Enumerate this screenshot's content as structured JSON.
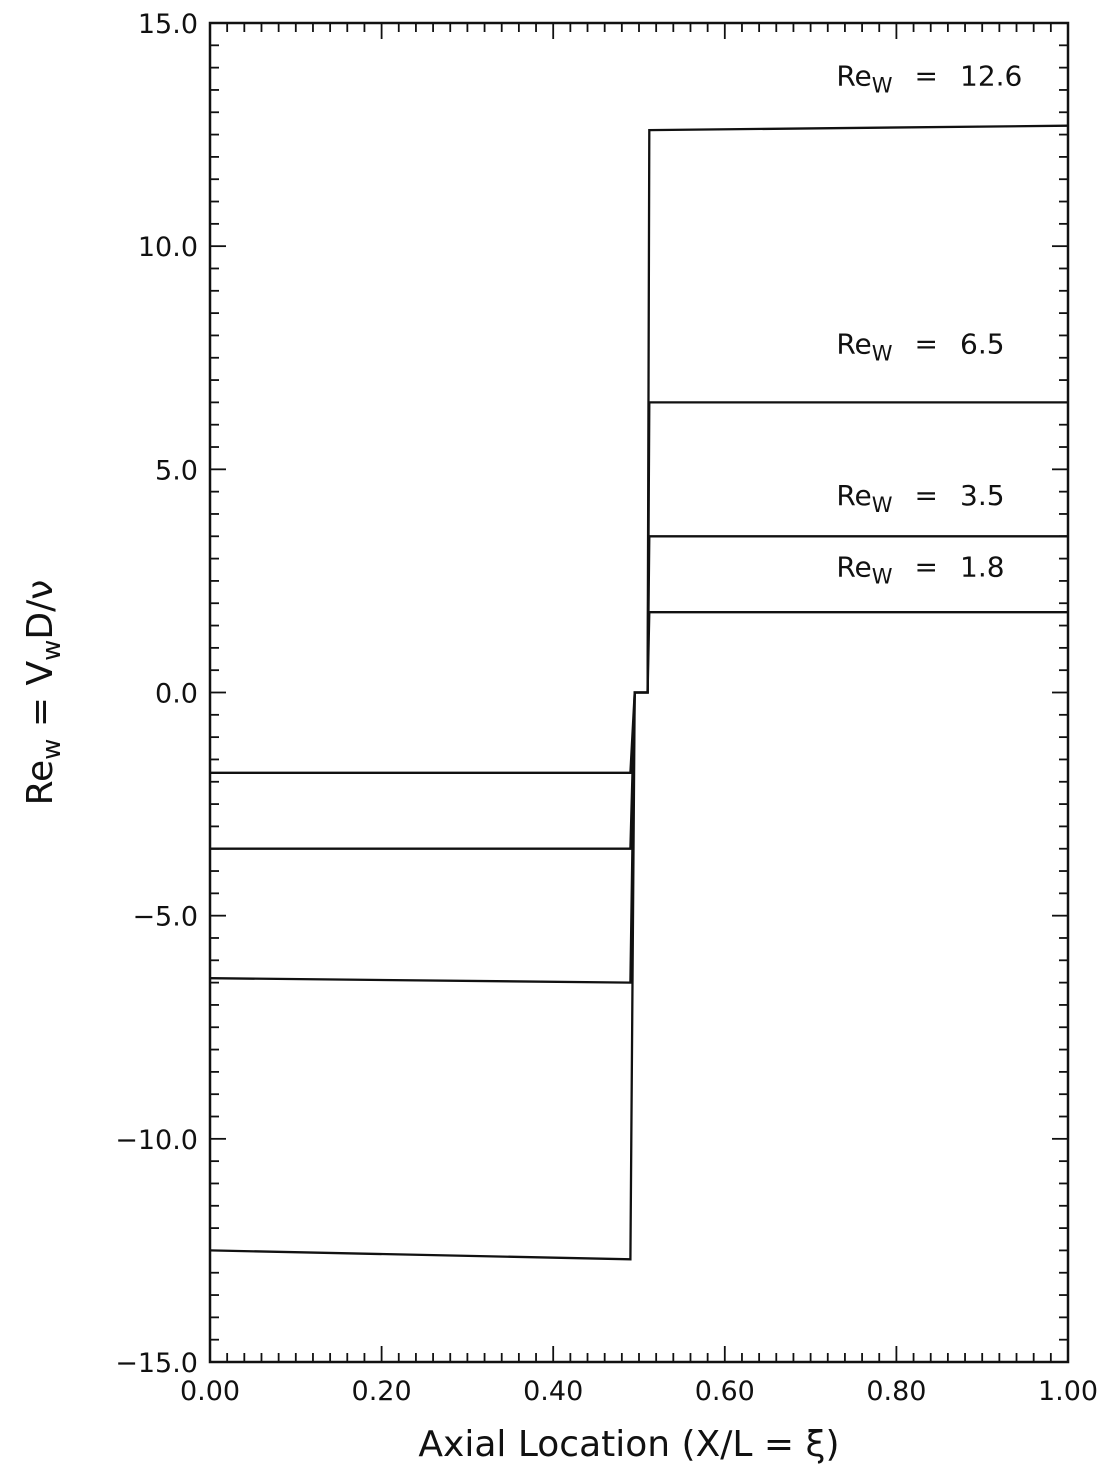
{
  "chart_data": {
    "type": "line",
    "title": "",
    "xlabel": "Axial Location (X/L = ξ)",
    "ylabel": "Re_w = V_wD/ν",
    "xlim": [
      0.0,
      1.0
    ],
    "ylim": [
      -15.0,
      15.0
    ],
    "x_ticks": [
      0.0,
      0.2,
      0.4,
      0.6,
      0.8,
      1.0
    ],
    "x_tick_labels": [
      "0.00",
      "0.20",
      "0.40",
      "0.60",
      "0.80",
      "1.00"
    ],
    "y_ticks": [
      -15.0,
      -10.0,
      -5.0,
      0.0,
      5.0,
      10.0,
      15.0
    ],
    "y_tick_labels": [
      "−15.0",
      "−10.0",
      "−5.0",
      "0.0",
      "5.0",
      "10.0",
      "15.0"
    ],
    "grid": false,
    "legend": "none",
    "series": [
      {
        "x": [
          0.0,
          0.49,
          0.495,
          0.51,
          0.512,
          1.0
        ],
        "y": [
          -12.5,
          -12.7,
          0.0,
          0.0,
          12.6,
          12.7
        ]
      },
      {
        "x": [
          0.0,
          0.49,
          0.495,
          0.51,
          0.512,
          1.0
        ],
        "y": [
          -6.4,
          -6.5,
          0.0,
          0.0,
          6.5,
          6.5
        ]
      },
      {
        "x": [
          0.0,
          0.49,
          0.495,
          0.51,
          0.512,
          1.0
        ],
        "y": [
          -3.5,
          -3.5,
          0.0,
          0.0,
          3.5,
          3.5
        ]
      },
      {
        "x": [
          0.0,
          0.49,
          0.495,
          0.51,
          0.512,
          1.0
        ],
        "y": [
          -1.8,
          -1.8,
          0.0,
          0.0,
          1.8,
          1.8
        ]
      }
    ],
    "annotations": [
      {
        "label": "Re",
        "subscript": "W",
        "equals": "=",
        "value": "12.6",
        "x": 0.73,
        "y": 13.6
      },
      {
        "label": "Re",
        "subscript": "W",
        "equals": "=",
        "value": "6.5",
        "x": 0.73,
        "y": 7.6
      },
      {
        "label": "Re",
        "subscript": "W",
        "equals": "=",
        "value": "3.5",
        "x": 0.73,
        "y": 4.2
      },
      {
        "label": "Re",
        "subscript": "W",
        "equals": "=",
        "value": "1.8",
        "x": 0.73,
        "y": 2.6
      }
    ]
  }
}
